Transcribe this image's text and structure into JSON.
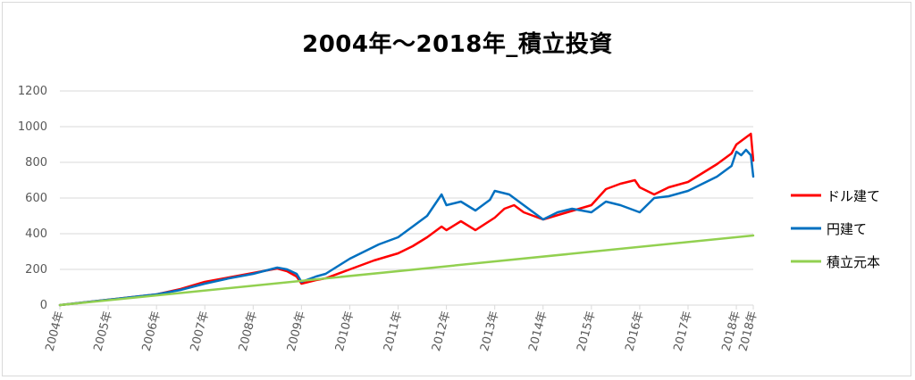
{
  "chart_data": {
    "type": "line",
    "title": "2004年～2018年_積立投資",
    "xlabel": "",
    "ylabel": "",
    "ylim": [
      0,
      1200
    ],
    "yticks": [
      0,
      200,
      400,
      600,
      800,
      1000,
      1200
    ],
    "xlim": [
      2004.0,
      2018.35
    ],
    "xtick_labels": [
      "2004年",
      "2005年",
      "2006年",
      "2007年",
      "2008年",
      "2009年",
      "2010年",
      "2011年",
      "2012年",
      "2013年",
      "2014年",
      "2015年",
      "2016年",
      "2017年",
      "2018年",
      "2018年"
    ],
    "xtick_values": [
      2004.0,
      2005.0,
      2006.0,
      2007.0,
      2008.0,
      2009.0,
      2010.0,
      2011.0,
      2012.0,
      2013.0,
      2014.0,
      2015.0,
      2016.0,
      2017.0,
      2018.0,
      2018.35
    ],
    "grid": "horizontal",
    "legend_position": "right",
    "series": [
      {
        "name": "ドル建て",
        "color": "#ff0000",
        "x": [
          2004.0,
          2004.5,
          2005.0,
          2005.5,
          2006.0,
          2006.5,
          2007.0,
          2007.5,
          2008.0,
          2008.5,
          2008.7,
          2008.9,
          2009.0,
          2009.3,
          2009.5,
          2010.0,
          2010.5,
          2011.0,
          2011.3,
          2011.6,
          2011.9,
          2012.0,
          2012.3,
          2012.6,
          2013.0,
          2013.2,
          2013.4,
          2013.6,
          2014.0,
          2014.5,
          2015.0,
          2015.3,
          2015.6,
          2015.9,
          2016.0,
          2016.3,
          2016.6,
          2017.0,
          2017.3,
          2017.6,
          2017.9,
          2018.0,
          2018.1,
          2018.2,
          2018.3,
          2018.35
        ],
        "y": [
          0,
          15,
          30,
          45,
          60,
          90,
          130,
          155,
          180,
          205,
          190,
          160,
          120,
          140,
          150,
          200,
          250,
          290,
          330,
          380,
          440,
          420,
          470,
          420,
          490,
          540,
          560,
          520,
          480,
          520,
          560,
          650,
          680,
          700,
          660,
          620,
          660,
          690,
          740,
          790,
          850,
          900,
          920,
          940,
          960,
          810
        ]
      },
      {
        "name": "円建て",
        "color": "#0070c0",
        "x": [
          2004.0,
          2004.5,
          2005.0,
          2005.5,
          2006.0,
          2006.5,
          2007.0,
          2007.5,
          2008.0,
          2008.5,
          2008.7,
          2008.9,
          2009.0,
          2009.3,
          2009.5,
          2010.0,
          2010.3,
          2010.6,
          2011.0,
          2011.3,
          2011.6,
          2011.9,
          2012.0,
          2012.3,
          2012.6,
          2012.9,
          2013.0,
          2013.3,
          2013.6,
          2014.0,
          2014.3,
          2014.6,
          2015.0,
          2015.3,
          2015.6,
          2016.0,
          2016.3,
          2016.6,
          2017.0,
          2017.3,
          2017.6,
          2017.9,
          2018.0,
          2018.1,
          2018.2,
          2018.3,
          2018.35
        ],
        "y": [
          0,
          15,
          30,
          45,
          60,
          85,
          120,
          150,
          175,
          210,
          200,
          175,
          130,
          160,
          175,
          260,
          300,
          340,
          380,
          440,
          500,
          620,
          560,
          580,
          530,
          590,
          640,
          620,
          560,
          480,
          520,
          540,
          520,
          580,
          560,
          520,
          600,
          610,
          640,
          680,
          720,
          780,
          860,
          840,
          870,
          840,
          720
        ]
      },
      {
        "name": "積立元本",
        "color": "#92d050",
        "x": [
          2004.0,
          2018.35
        ],
        "y": [
          0,
          390
        ]
      }
    ]
  }
}
